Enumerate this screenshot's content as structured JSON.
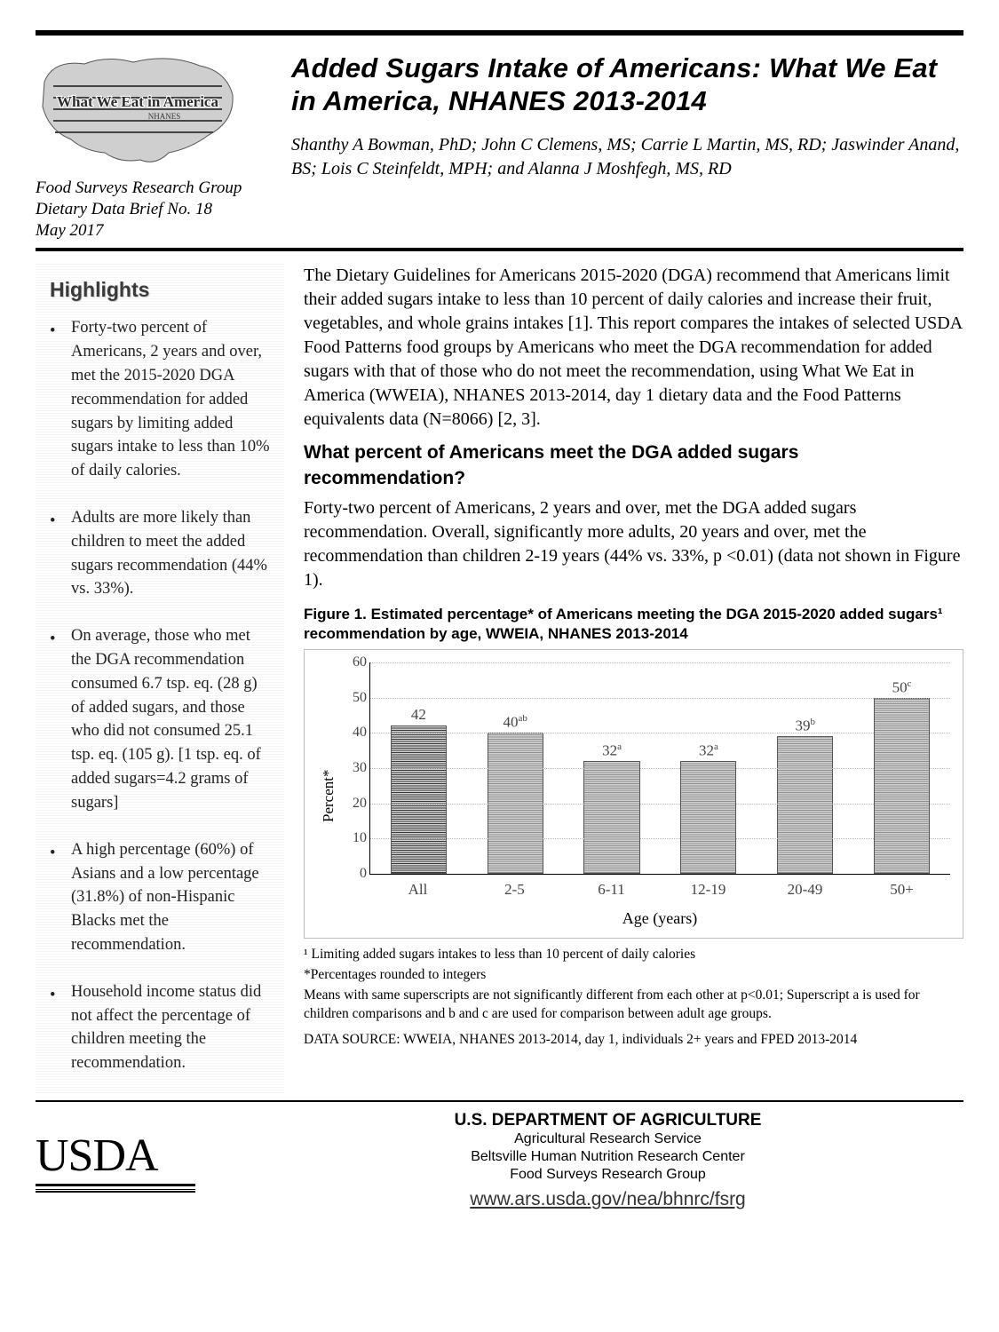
{
  "header": {
    "logo_caption_group": "Food Surveys Research Group",
    "brief_no": "Dietary Data Brief No. 18",
    "date": "May 2017",
    "title": "Added Sugars Intake of Americans:  What We Eat in America, NHANES 2013-2014",
    "authors": "Shanthy A Bowman, PhD; John C Clemens, MS; Carrie L Martin, MS, RD; Jaswinder Anand, BS; Lois C Steinfeldt, MPH; and Alanna J Moshfegh, MS, RD"
  },
  "sidebar": {
    "heading": "Highlights",
    "items": [
      "Forty-two percent of Americans, 2 years and over, met the 2015-2020 DGA recommendation for added sugars by limiting added sugars intake to less than 10% of daily calories.",
      "Adults are more likely than children to meet the added sugars recommendation (44% vs. 33%).",
      "On average, those who met the DGA recommendation consumed 6.7 tsp. eq. (28 g) of added sugars, and those who did not consumed 25.1 tsp. eq. (105 g). [1 tsp. eq. of added sugars=4.2 grams of sugars]",
      "A high percentage (60%) of Asians and a low percentage (31.8%) of  non-Hispanic Blacks met the recommendation.",
      "Household income status did not affect the percentage of children meeting the recommendation."
    ]
  },
  "main": {
    "intro": "The Dietary Guidelines for Americans 2015-2020 (DGA) recommend that Americans limit their added sugars intake to less than 10 percent of daily calories and increase their fruit, vegetables, and whole grains intakes [1]. This report compares the intakes of selected USDA Food Patterns food groups by Americans who meet the DGA recommendation for added sugars with that of those who do not meet the recommendation, using What We Eat in America (WWEIA), NHANES 2013-2014, day 1 dietary data and the Food Patterns equivalents data (N=8066) [2, 3].",
    "section_q": "What percent of Americans meet the DGA added sugars recommendation?",
    "section_body": "Forty-two percent of Americans, 2 years and over, met the DGA added sugars recommendation.  Overall, significantly more adults, 20 years and over, met the recommendation than children 2-19 years (44% vs. 33%, p <0.01) (data not shown in Figure 1)."
  },
  "figure1": {
    "title": "Figure 1.  Estimated percentage* of Americans meeting the DGA 2015-2020 added sugars¹ recommendation by age,  WWEIA, NHANES 2013-2014",
    "type": "bar",
    "y_label": "Percent*",
    "x_label": "Age (years)",
    "categories": [
      "All",
      "2-5",
      "6-11",
      "12-19",
      "20-49",
      "50+"
    ],
    "values": [
      42,
      40,
      32,
      32,
      39,
      50
    ],
    "value_sups": [
      "",
      "ab",
      "a",
      "a",
      "b",
      "c"
    ],
    "bar_color": "#909090",
    "bar_color_first": "#3a3a3a",
    "ylim": [
      0,
      60
    ],
    "ytick_step": 10,
    "grid_color": "#b8b8b8",
    "border_color": "#bdbdbd",
    "notes": [
      "¹ Limiting added sugars intakes to less than 10 percent of daily calories",
      "*Percentages rounded to integers",
      " Means with same superscripts are not significantly different from each other at p<0.01;  Superscript a is used for children comparisons and b and c are used for comparison between adult age groups.",
      "DATA SOURCE: WWEIA, NHANES 2013-2014, day 1, individuals 2+ years and FPED 2013-2014"
    ]
  },
  "footer": {
    "usda": "USDA",
    "dept": "U.S. DEPARTMENT OF AGRICULTURE",
    "line2": "Agricultural Research Service",
    "line3": "Beltsville Human Nutrition Research Center",
    "line4": "Food Surveys Research Group",
    "url": "www.ars.usda.gov/nea/bhnrc/fsrg"
  }
}
